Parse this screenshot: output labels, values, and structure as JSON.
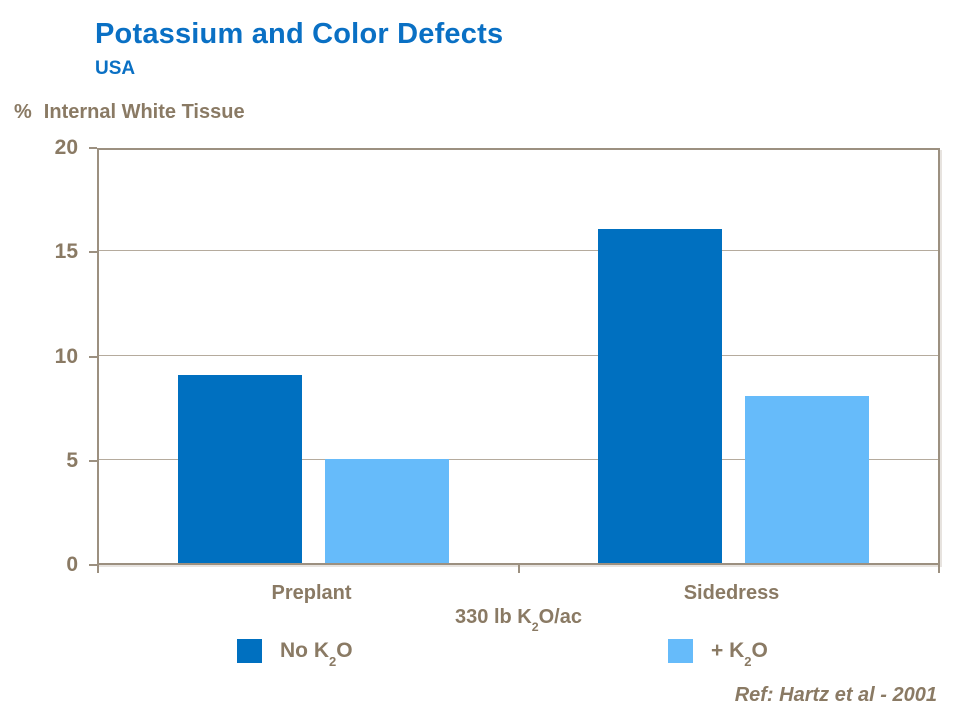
{
  "slide": {
    "title": "Potassium and Color Defects",
    "subtitle": "USA",
    "y_axis_title_unit": "%",
    "y_axis_title_text": "Internal White Tissue",
    "x_axis_title_pre": "330 lb K",
    "x_axis_title_sub": "2",
    "x_axis_title_post": "O/ac",
    "reference": "Ref: Hartz et al - 2001"
  },
  "legend": {
    "items": [
      {
        "pre": "No K",
        "sub": "2",
        "post": "O",
        "color": "#0070c0"
      },
      {
        "pre": "+ K",
        "sub": "2",
        "post": "O",
        "color": "#66bbfa"
      }
    ]
  },
  "colors": {
    "title_blue": "#0a70c4",
    "text_taupe": "#8a7a64",
    "axis_line": "#9c9080",
    "gridline": "#b5ab9d",
    "bar_no_k2o": "#0070c0",
    "bar_plus_k2o": "#66bbfa",
    "background": "#ffffff"
  },
  "chart_data": {
    "type": "bar",
    "categories": [
      "Preplant",
      "Sidedress"
    ],
    "series": [
      {
        "name": "No K2O",
        "values": [
          9,
          16
        ],
        "color": "#0070c0"
      },
      {
        "name": "+ K2O",
        "values": [
          5,
          8
        ],
        "color": "#66bbfa"
      }
    ],
    "title": "Potassium and Color Defects",
    "subtitle": "USA",
    "xlabel": "330 lb K2O/ac",
    "ylabel": "% Internal White Tissue",
    "ylim": [
      0,
      20
    ],
    "yticks": [
      0,
      5,
      10,
      15,
      20
    ],
    "grid": true,
    "legend_position": "bottom",
    "annotation": "Ref: Hartz et al - 2001"
  }
}
